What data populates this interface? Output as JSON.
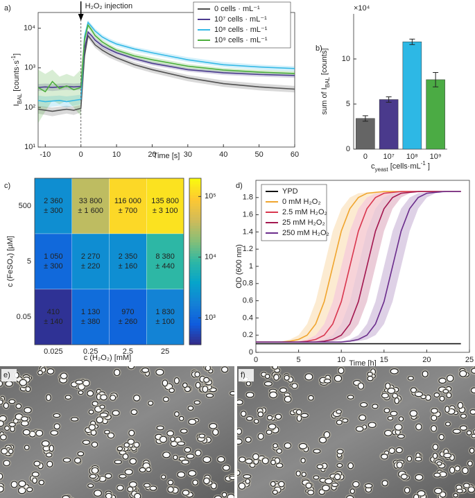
{
  "chart_data": [
    {
      "type": "line",
      "panel": "a)",
      "log": true,
      "xlabel": "Time [s]",
      "ylabel": [
        {
          "text": "I"
        },
        {
          "text": "BAL",
          "sub": true
        },
        {
          "text": " [counts·s"
        },
        {
          "text": "-1",
          "sup": true
        },
        {
          "text": "]"
        }
      ],
      "annotation": {
        "text": "H₂O₂ injection",
        "x": 0
      },
      "legend": "upper right",
      "xlim": [
        -12,
        60
      ],
      "xticks": [
        -10,
        0,
        10,
        20,
        30,
        40,
        50,
        60
      ],
      "ylim": [
        10,
        25000
      ],
      "yticks": [
        {
          "value": 10,
          "label": "10¹"
        },
        {
          "value": 100,
          "label": "10²"
        },
        {
          "value": 1000,
          "label": "10³"
        },
        {
          "value": 10000,
          "label": "10⁴"
        }
      ],
      "x": [
        -12,
        -10,
        -8,
        -6,
        -4,
        -2,
        0,
        1,
        2,
        3,
        4,
        6,
        8,
        10,
        15,
        20,
        30,
        40,
        50,
        60
      ],
      "series": [
        {
          "name": "0 cells · mL⁻¹",
          "color": "#505050",
          "values": [
            90,
            85,
            80,
            85,
            90,
            85,
            95,
            2000,
            6500,
            5000,
            3800,
            2800,
            2200,
            1800,
            1200,
            900,
            560,
            400,
            330,
            290
          ],
          "lower": [
            70,
            65,
            60,
            65,
            70,
            65,
            75,
            1500,
            5500,
            4200,
            3200,
            2300,
            1800,
            1500,
            1000,
            750,
            460,
            330,
            270,
            240
          ],
          "upper": [
            110,
            105,
            100,
            105,
            110,
            105,
            115,
            2600,
            7500,
            5800,
            4400,
            3300,
            2600,
            2100,
            1400,
            1050,
            660,
            480,
            400,
            350
          ]
        },
        {
          "name": "10⁷ cells · mL⁻¹",
          "color": "#4b3b8f",
          "values": [
            320,
            330,
            320,
            330,
            340,
            330,
            340,
            3000,
            8000,
            6500,
            5000,
            3600,
            2900,
            2400,
            1700,
            1300,
            900,
            750,
            680,
            640
          ],
          "lower": [
            260,
            270,
            260,
            270,
            280,
            270,
            280,
            2500,
            7000,
            5600,
            4300,
            3100,
            2500,
            2100,
            1500,
            1150,
            800,
            660,
            600,
            560
          ],
          "upper": [
            390,
            400,
            390,
            400,
            410,
            400,
            410,
            3600,
            9000,
            7400,
            5700,
            4100,
            3300,
            2700,
            1900,
            1450,
            1000,
            840,
            760,
            720
          ]
        },
        {
          "name": "10⁸ cells · mL⁻¹",
          "color": "#35b9e6",
          "values": [
            150,
            140,
            145,
            150,
            140,
            150,
            160,
            6000,
            14000,
            11000,
            8500,
            6000,
            4800,
            4000,
            3000,
            2400,
            1600,
            1200,
            1050,
            960
          ],
          "lower": [
            110,
            100,
            105,
            110,
            100,
            110,
            120,
            4800,
            12000,
            9500,
            7300,
            5200,
            4200,
            3500,
            2600,
            2100,
            1400,
            1050,
            900,
            820
          ],
          "upper": [
            200,
            190,
            195,
            200,
            190,
            200,
            210,
            7500,
            16000,
            12500,
            9800,
            6900,
            5500,
            4600,
            3400,
            2750,
            1850,
            1400,
            1200,
            1100
          ]
        },
        {
          "name": "10⁹ cells · mL⁻¹",
          "color": "#4caf3c",
          "values": [
            320,
            250,
            450,
            300,
            350,
            280,
            320,
            5000,
            12000,
            9000,
            6500,
            4500,
            3500,
            2800,
            2000,
            1600,
            1100,
            880,
            780,
            720
          ],
          "lower": [
            40,
            80,
            150,
            120,
            150,
            100,
            60,
            3500,
            10000,
            7500,
            5500,
            3800,
            3000,
            2400,
            1700,
            1350,
            950,
            760,
            670,
            620
          ],
          "upper": [
            900,
            700,
            900,
            600,
            700,
            600,
            900,
            6500,
            14000,
            10500,
            7500,
            5200,
            4000,
            3200,
            2300,
            1850,
            1250,
            1000,
            890,
            820
          ]
        }
      ]
    },
    {
      "type": "bar",
      "panel": "b)",
      "ylabel": [
        {
          "text": "sum of I"
        },
        {
          "text": "BAL",
          "sub": true
        },
        {
          "text": " [counts]"
        }
      ],
      "xlabel": [
        {
          "text": "c"
        },
        {
          "text": "yeast",
          "sub": true
        },
        {
          "text": " [cells·mL"
        },
        {
          "text": "-1",
          "sup": true
        },
        {
          "text": " ]"
        }
      ],
      "yscale_label": "×10⁴",
      "categories": [
        "0",
        "10⁷",
        "10⁸",
        "10⁹"
      ],
      "values": [
        34000,
        55000,
        119000,
        77000
      ],
      "errors": [
        3000,
        3000,
        3000,
        8000
      ],
      "colors": [
        "#656565",
        "#4a3a8c",
        "#2db8e5",
        "#4bab44"
      ],
      "ylim": [
        0,
        150000
      ],
      "yticks": [
        0,
        {
          "value": 50000,
          "label": "5"
        },
        {
          "value": 100000,
          "label": "10"
        }
      ]
    },
    {
      "type": "heatmap",
      "panel": "c)",
      "xlabel": "c (H₂O₂) [mM]",
      "ylabel": "c (FeSO₄) [µM]",
      "x_categories": [
        "0.025",
        "0.25",
        "2.5",
        "25"
      ],
      "y_categories": [
        "500",
        "5",
        "0.05"
      ],
      "values": [
        [
          2360,
          33800,
          116000,
          135800
        ],
        [
          1050,
          2270,
          2350,
          8380
        ],
        [
          410,
          1130,
          970,
          1830
        ]
      ],
      "value_labels": [
        [
          "2 360",
          "33 800",
          "116 000",
          "135 800"
        ],
        [
          "1 050",
          "2 270",
          "2 350",
          "8 380"
        ],
        [
          "410",
          "1 130",
          "970",
          "1 830"
        ]
      ],
      "errors": [
        [
          300,
          1600,
          700,
          3100
        ],
        [
          300,
          220,
          160,
          440
        ],
        [
          140,
          380,
          260,
          100
        ]
      ],
      "error_labels": [
        [
          "± 300",
          "± 1 600",
          "± 700",
          "± 3 100"
        ],
        [
          "± 300",
          "± 220",
          "± 160",
          "± 440"
        ],
        [
          "± 140",
          "± 380",
          "± 260",
          "± 100"
        ]
      ],
      "log": true,
      "clim": [
        360,
        200000
      ],
      "colormap": [
        "#352a87",
        "#0f5cdd",
        "#1481d6",
        "#06a4ca",
        "#2eb7a4",
        "#87bf77",
        "#d1bb59",
        "#fec832",
        "#f9fb0e"
      ],
      "cticks": [
        {
          "value": 1000,
          "label": "10³"
        },
        {
          "value": 10000,
          "label": "10⁴"
        },
        {
          "value": 100000,
          "label": "10⁵"
        }
      ]
    },
    {
      "type": "line",
      "panel": "d)",
      "xlabel": "Time [h]",
      "ylabel": "OD (600 nm)",
      "legend": "upper left",
      "xlim": [
        0,
        25
      ],
      "xticks": [
        0,
        5,
        10,
        15,
        20,
        25
      ],
      "ylim": [
        0,
        2
      ],
      "yticks": [
        0,
        0.2,
        0.4,
        0.6,
        0.8,
        1,
        1.2,
        1.4,
        1.6,
        1.8
      ],
      "x": [
        0,
        1,
        2,
        3,
        4,
        5,
        6,
        7,
        8,
        9,
        10,
        11,
        12,
        13,
        14,
        15,
        16,
        17,
        18,
        19,
        20,
        21,
        22,
        23,
        24
      ],
      "series": [
        {
          "name": "YPD",
          "color": "#111111",
          "values": [
            0.1,
            0.1,
            0.1,
            0.1,
            0.1,
            0.1,
            0.1,
            0.1,
            0.1,
            0.1,
            0.1,
            0.1,
            0.1,
            0.1,
            0.1,
            0.1,
            0.1,
            0.1,
            0.1,
            0.1,
            0.1,
            0.1,
            0.1,
            0.1,
            0.1
          ]
        },
        {
          "name": "0 mM H₂O₂",
          "color": "#f0a52e",
          "values": [
            0.12,
            0.12,
            0.12,
            0.12,
            0.13,
            0.15,
            0.2,
            0.33,
            0.59,
            1.0,
            1.41,
            1.67,
            1.8,
            1.85,
            1.86,
            1.87,
            1.87,
            1.87,
            1.87,
            1.87,
            1.87,
            1.87,
            1.87,
            1.87,
            1.87
          ],
          "lower": [
            0.12,
            0.12,
            0.12,
            0.12,
            0.12,
            0.13,
            0.15,
            0.2,
            0.33,
            0.59,
            1.0,
            1.41,
            1.67,
            1.8,
            1.85,
            1.86,
            1.87,
            1.87,
            1.87,
            1.87,
            1.87,
            1.87,
            1.87,
            1.87,
            1.87
          ],
          "upper": [
            0.12,
            0.12,
            0.12,
            0.13,
            0.15,
            0.2,
            0.33,
            0.59,
            1.0,
            1.41,
            1.67,
            1.8,
            1.85,
            1.86,
            1.87,
            1.87,
            1.87,
            1.87,
            1.87,
            1.87,
            1.87,
            1.87,
            1.87,
            1.87,
            1.87
          ]
        },
        {
          "name": "2.5 mM H₂O₂",
          "color": "#d9364e",
          "values": [
            0.12,
            0.12,
            0.12,
            0.12,
            0.12,
            0.12,
            0.13,
            0.15,
            0.2,
            0.33,
            0.59,
            1.0,
            1.41,
            1.67,
            1.8,
            1.85,
            1.86,
            1.87,
            1.87,
            1.87,
            1.87,
            1.87,
            1.87,
            1.87,
            1.87
          ],
          "lower": [
            0.12,
            0.12,
            0.12,
            0.12,
            0.12,
            0.12,
            0.12,
            0.13,
            0.15,
            0.2,
            0.33,
            0.59,
            1.0,
            1.41,
            1.67,
            1.8,
            1.85,
            1.86,
            1.87,
            1.87,
            1.87,
            1.87,
            1.87,
            1.87,
            1.87
          ],
          "upper": [
            0.12,
            0.12,
            0.12,
            0.12,
            0.12,
            0.13,
            0.15,
            0.2,
            0.33,
            0.59,
            1.0,
            1.41,
            1.67,
            1.8,
            1.85,
            1.86,
            1.87,
            1.87,
            1.87,
            1.87,
            1.87,
            1.87,
            1.87,
            1.87,
            1.87
          ]
        },
        {
          "name": "25 mM H₂O₂",
          "color": "#a3174f",
          "values": [
            0.12,
            0.12,
            0.12,
            0.12,
            0.12,
            0.12,
            0.12,
            0.12,
            0.13,
            0.15,
            0.2,
            0.33,
            0.59,
            1.0,
            1.41,
            1.67,
            1.8,
            1.85,
            1.86,
            1.87,
            1.87,
            1.87,
            1.87,
            1.87,
            1.87
          ],
          "lower": [
            0.12,
            0.12,
            0.12,
            0.12,
            0.12,
            0.12,
            0.12,
            0.12,
            0.12,
            0.13,
            0.15,
            0.2,
            0.33,
            0.59,
            1.0,
            1.41,
            1.67,
            1.8,
            1.85,
            1.86,
            1.87,
            1.87,
            1.87,
            1.87,
            1.87
          ],
          "upper": [
            0.12,
            0.12,
            0.12,
            0.12,
            0.12,
            0.12,
            0.12,
            0.13,
            0.15,
            0.2,
            0.33,
            0.59,
            1.0,
            1.41,
            1.67,
            1.8,
            1.85,
            1.86,
            1.87,
            1.87,
            1.87,
            1.87,
            1.87,
            1.87,
            1.87
          ]
        },
        {
          "name": "250 mM H₂O₂",
          "color": "#6b2d8c",
          "values": [
            0.12,
            0.12,
            0.12,
            0.12,
            0.12,
            0.12,
            0.12,
            0.12,
            0.12,
            0.12,
            0.12,
            0.13,
            0.15,
            0.2,
            0.33,
            0.59,
            1.0,
            1.41,
            1.67,
            1.8,
            1.85,
            1.86,
            1.87,
            1.87,
            1.87
          ],
          "lower": [
            0.12,
            0.12,
            0.12,
            0.12,
            0.12,
            0.12,
            0.12,
            0.12,
            0.12,
            0.12,
            0.12,
            0.12,
            0.13,
            0.15,
            0.2,
            0.33,
            0.59,
            1.0,
            1.41,
            1.67,
            1.8,
            1.85,
            1.86,
            1.87,
            1.87
          ],
          "upper": [
            0.12,
            0.12,
            0.12,
            0.12,
            0.12,
            0.12,
            0.12,
            0.12,
            0.12,
            0.12,
            0.13,
            0.15,
            0.2,
            0.33,
            0.59,
            1.0,
            1.41,
            1.67,
            1.8,
            1.85,
            1.86,
            1.87,
            1.87,
            1.87,
            1.87
          ]
        }
      ]
    }
  ],
  "images": [
    {
      "panel": "e)"
    },
    {
      "panel": "f)"
    }
  ]
}
